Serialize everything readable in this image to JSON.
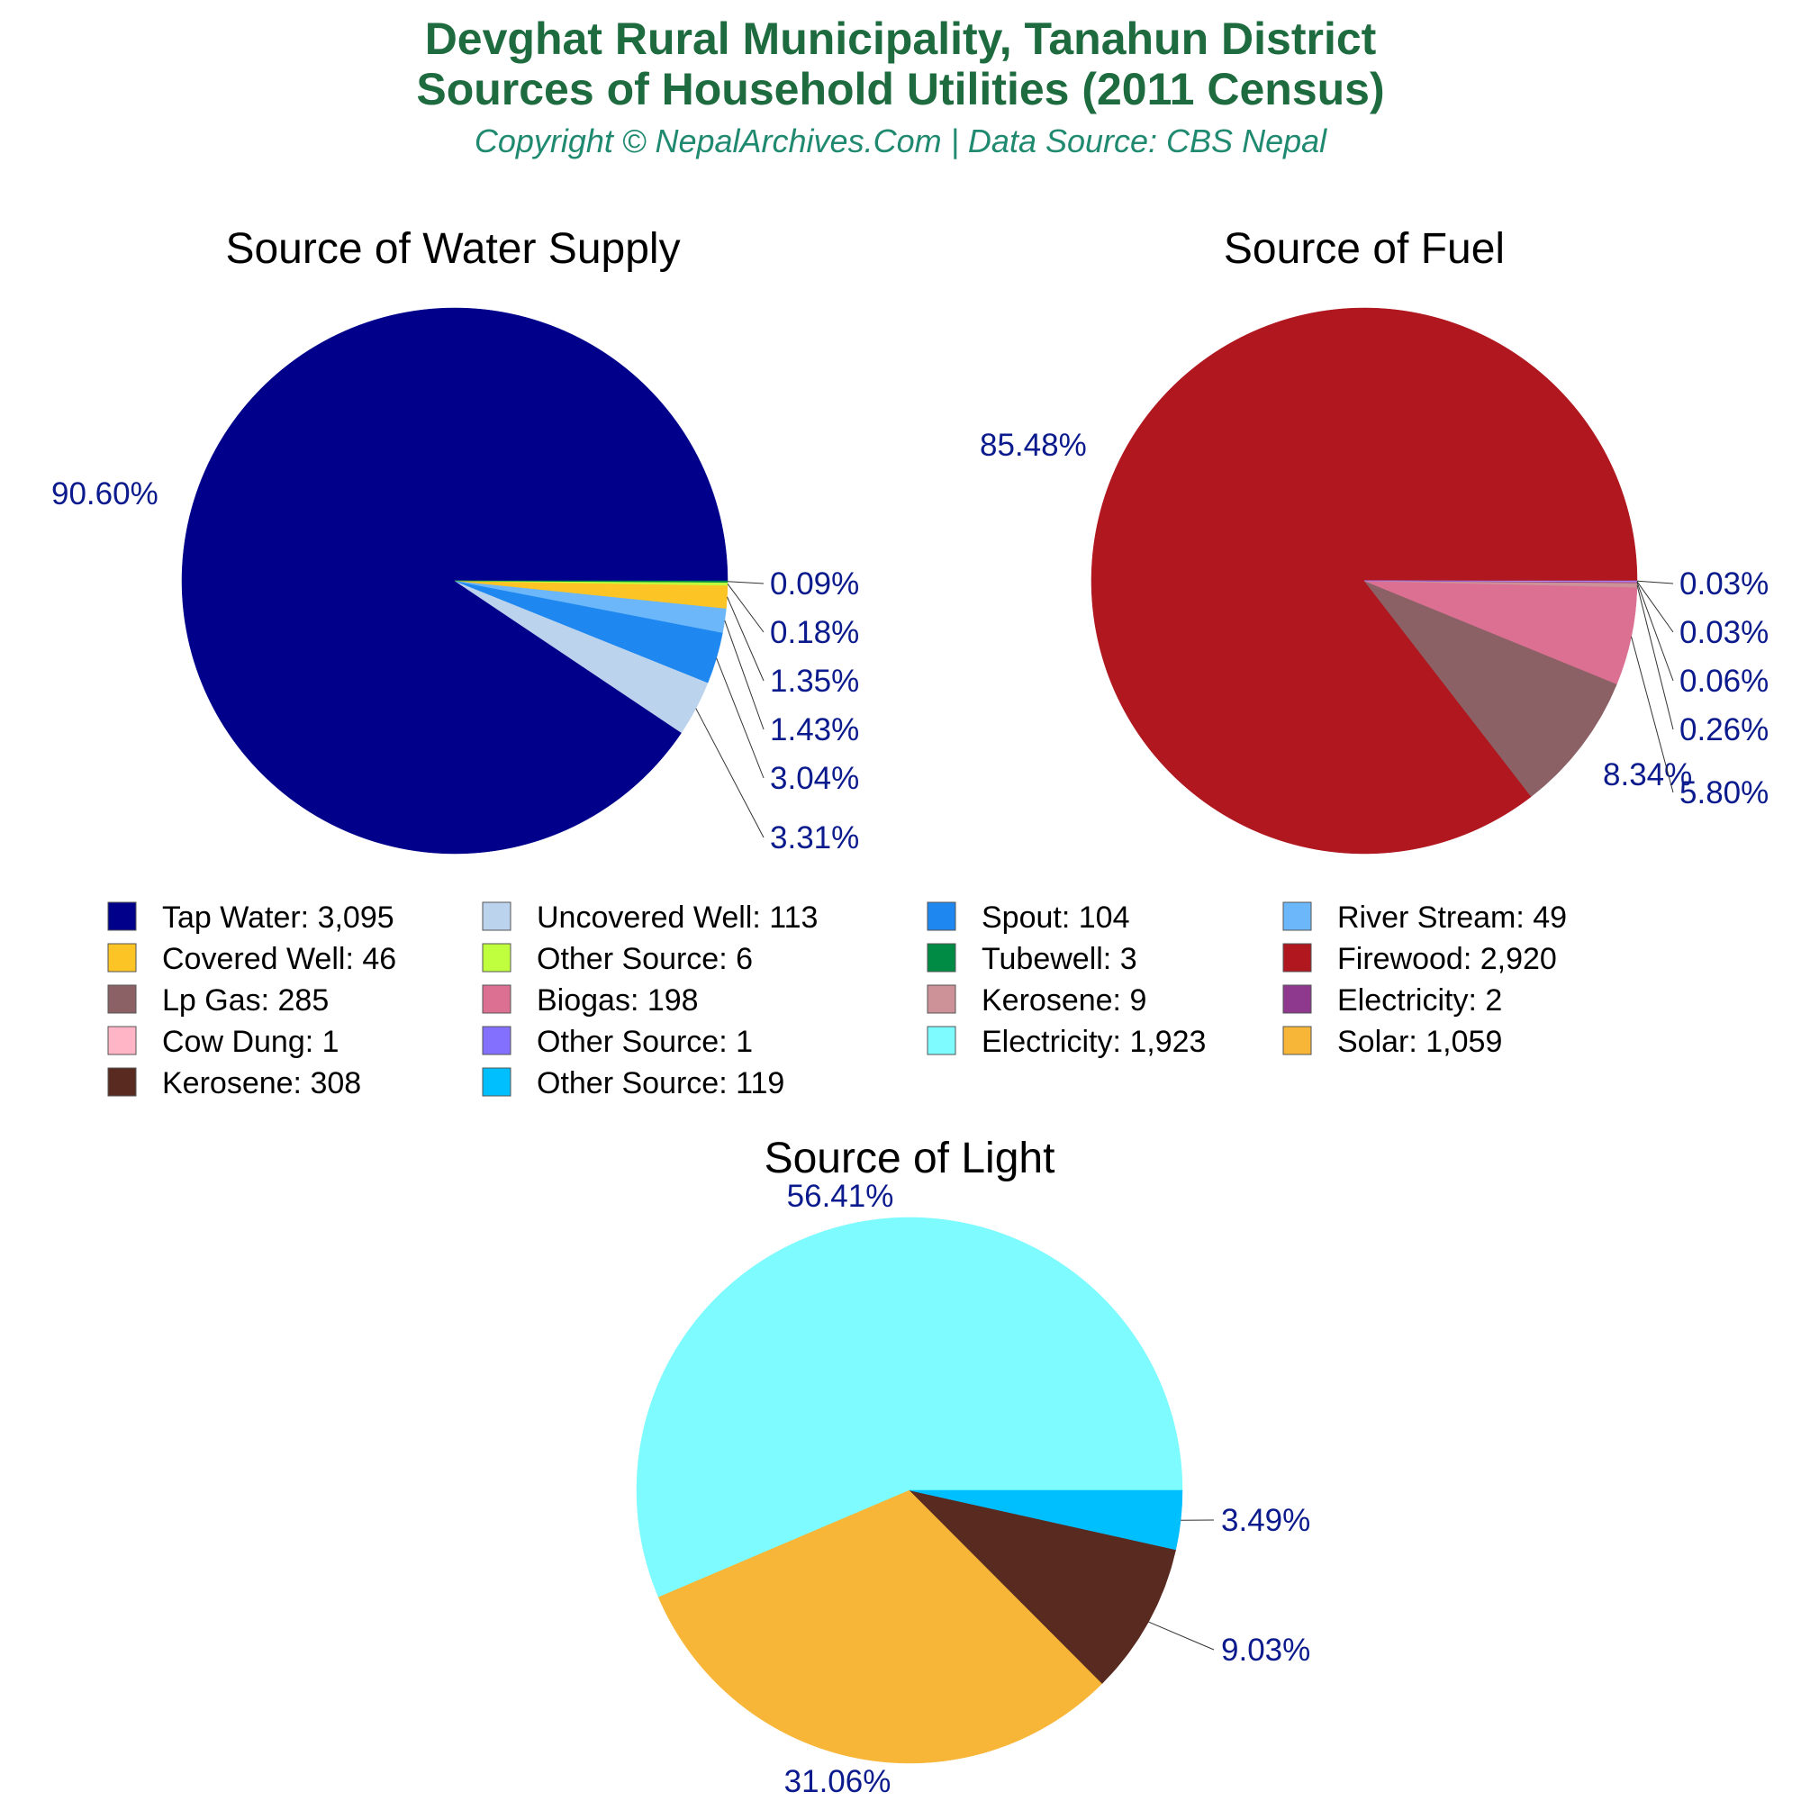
{
  "header": {
    "title_line1": "Devghat Rural Municipality, Tanahun District",
    "title_line2": "Sources of Household Utilities (2011 Census)",
    "subtitle": "Copyright © NepalArchives.Com | Data Source: CBS Nepal"
  },
  "chart_data": [
    {
      "type": "pie",
      "title": "Source of Water Supply",
      "slices": [
        {
          "label": "Tap Water",
          "value": 3095,
          "percent_label": "90.60%",
          "color": "#00008b"
        },
        {
          "label": "Uncovered Well",
          "value": 113,
          "percent_label": "3.31%",
          "color": "#bcd3ee"
        },
        {
          "label": "Spout",
          "value": 104,
          "percent_label": "3.04%",
          "color": "#1e88f0"
        },
        {
          "label": "River Stream",
          "value": 49,
          "percent_label": "1.43%",
          "color": "#6cb6fa"
        },
        {
          "label": "Covered Well",
          "value": 46,
          "percent_label": "1.35%",
          "color": "#fcc425"
        },
        {
          "label": "Other Source",
          "value": 6,
          "percent_label": "0.18%",
          "color": "#c0ff3e"
        },
        {
          "label": "Tubewell",
          "value": 3,
          "percent_label": "0.09%",
          "color": "#008b45"
        }
      ]
    },
    {
      "type": "pie",
      "title": "Source of Fuel",
      "slices": [
        {
          "label": "Firewood",
          "value": 2920,
          "percent_label": "85.48%",
          "color": "#b0171f"
        },
        {
          "label": "Lp Gas",
          "value": 285,
          "percent_label": "8.34%",
          "color": "#8b6165"
        },
        {
          "label": "Biogas",
          "value": 198,
          "percent_label": "5.80%",
          "color": "#db7093"
        },
        {
          "label": "Kerosene",
          "value": 9,
          "percent_label": "0.26%",
          "color": "#cd9198"
        },
        {
          "label": "Electricity",
          "value": 2,
          "percent_label": "0.06%",
          "color": "#8e388e"
        },
        {
          "label": "Cow Dung",
          "value": 1,
          "percent_label": "0.03%",
          "color": "#ffb5c5"
        },
        {
          "label": "Other Source",
          "value": 1,
          "percent_label": "0.03%",
          "color": "#8470ff"
        }
      ]
    },
    {
      "type": "pie",
      "title": "Source of Light",
      "slices": [
        {
          "label": "Electricity",
          "value": 1923,
          "percent_label": "56.41%",
          "color": "#7dfbff"
        },
        {
          "label": "Solar",
          "value": 1059,
          "percent_label": "31.06%",
          "color": "#f7b638"
        },
        {
          "label": "Kerosene",
          "value": 308,
          "percent_label": "9.03%",
          "color": "#592a20"
        },
        {
          "label": "Other Source",
          "value": 119,
          "percent_label": "3.49%",
          "color": "#00bfff"
        }
      ]
    }
  ],
  "legend": {
    "items": [
      {
        "text": "Tap Water: 3,095",
        "color": "#00008b"
      },
      {
        "text": "Uncovered Well: 113",
        "color": "#bcd3ee"
      },
      {
        "text": "Spout: 104",
        "color": "#1e88f0"
      },
      {
        "text": "River Stream: 49",
        "color": "#6cb6fa"
      },
      {
        "text": "Covered Well: 46",
        "color": "#fcc425"
      },
      {
        "text": "Other Source: 6",
        "color": "#c0ff3e"
      },
      {
        "text": "Tubewell: 3",
        "color": "#008b45"
      },
      {
        "text": "Firewood: 2,920",
        "color": "#b0171f"
      },
      {
        "text": "Lp Gas: 285",
        "color": "#8b6165"
      },
      {
        "text": "Biogas: 198",
        "color": "#db7093"
      },
      {
        "text": "Kerosene: 9",
        "color": "#cd9198"
      },
      {
        "text": "Electricity: 2",
        "color": "#8e388e"
      },
      {
        "text": "Cow Dung: 1",
        "color": "#ffb5c5"
      },
      {
        "text": "Other Source: 1",
        "color": "#8470ff"
      },
      {
        "text": "Electricity: 1,923",
        "color": "#7dfbff"
      },
      {
        "text": "Solar: 1,059",
        "color": "#f7b638"
      },
      {
        "text": "Kerosene: 308",
        "color": "#592a20"
      },
      {
        "text": "Other Source: 119",
        "color": "#00bfff"
      }
    ]
  }
}
